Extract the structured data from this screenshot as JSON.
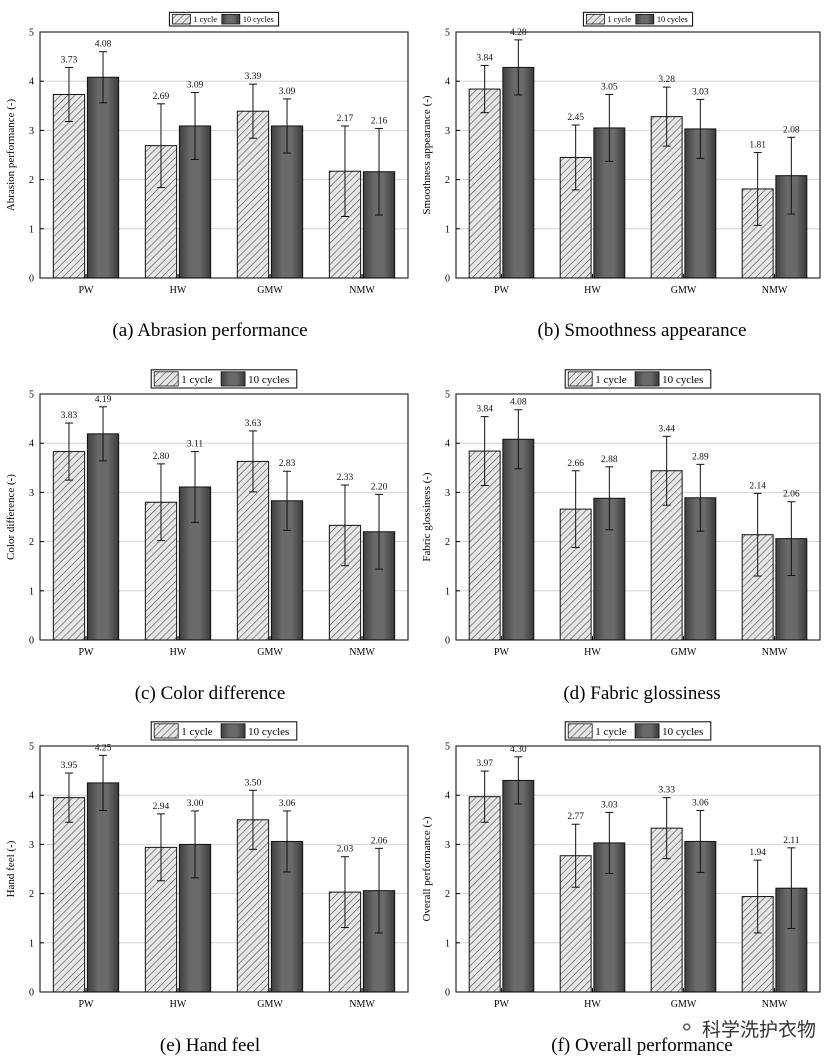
{
  "watermark": {
    "text": "科学洗护衣物",
    "icon": "wechat-bubble-icon"
  },
  "styles": {
    "bar_one_cycle": "#d9d9d9",
    "bar_ten_cycles": "#555555",
    "grid": "#cccccc",
    "axis": "#000000"
  },
  "chart_data": [
    {
      "id": "a",
      "type": "bar",
      "caption": "(a) Abrasion performance",
      "ylabel": "Abrasion performance (-)",
      "xlabel": "",
      "ylim": [
        0,
        5
      ],
      "yticks": [
        "0",
        "1",
        "2",
        "3",
        "4",
        "5"
      ],
      "grid": true,
      "legend": "top-center",
      "categories": [
        "PW",
        "HW",
        "GMW",
        "NMW"
      ],
      "series": [
        {
          "name": "1 cycle",
          "values": [
            3.73,
            2.69,
            3.39,
            2.17
          ],
          "labels": [
            "3.73",
            "2.69",
            "3.39",
            "2.17"
          ],
          "err": [
            0.55,
            0.85,
            0.55,
            0.92
          ]
        },
        {
          "name": "10 cycles",
          "values": [
            4.08,
            3.09,
            3.09,
            2.16
          ],
          "labels": [
            "4.08",
            "3.09",
            "3.09",
            "2.16"
          ],
          "err": [
            0.52,
            0.68,
            0.55,
            0.88
          ]
        }
      ]
    },
    {
      "id": "b",
      "type": "bar",
      "caption": "(b) Smoothness appearance",
      "ylabel": "Smoothness appearance (-)",
      "xlabel": "",
      "ylim": [
        0,
        5
      ],
      "yticks": [
        "0",
        "1",
        "2",
        "3",
        "4",
        "5"
      ],
      "grid": true,
      "legend": "top-center",
      "categories": [
        "PW",
        "HW",
        "GMW",
        "NMW"
      ],
      "series": [
        {
          "name": "1 cycle",
          "values": [
            3.84,
            2.45,
            3.28,
            1.81
          ],
          "labels": [
            "3.84",
            "2.45",
            "3.28",
            "1.81"
          ],
          "err": [
            0.48,
            0.66,
            0.6,
            0.74
          ]
        },
        {
          "name": "10 cycles",
          "values": [
            4.28,
            3.05,
            3.03,
            2.08
          ],
          "labels": [
            "4.28",
            "3.05",
            "3.03",
            "2.08"
          ],
          "err": [
            0.56,
            0.68,
            0.6,
            0.78
          ]
        }
      ]
    },
    {
      "id": "c",
      "type": "bar",
      "caption": "(c) Color difference",
      "ylabel": "Color difference (-)",
      "xlabel": "",
      "ylim": [
        0,
        5
      ],
      "yticks": [
        "0",
        "1",
        "2",
        "3",
        "4",
        "5"
      ],
      "grid": true,
      "legend": "top-center",
      "categories": [
        "PW",
        "HW",
        "GMW",
        "NMW"
      ],
      "series": [
        {
          "name": "1 cycle",
          "values": [
            3.83,
            2.8,
            3.63,
            2.33
          ],
          "labels": [
            "3.83",
            "2.80",
            "3.63",
            "2.33"
          ],
          "err": [
            0.58,
            0.78,
            0.62,
            0.82
          ]
        },
        {
          "name": "10 cycles",
          "values": [
            4.19,
            3.11,
            2.83,
            2.2
          ],
          "labels": [
            "4.19",
            "3.11",
            "2.83",
            "2.20"
          ],
          "err": [
            0.55,
            0.72,
            0.6,
            0.76
          ]
        }
      ]
    },
    {
      "id": "d",
      "type": "bar",
      "caption": "(d) Fabric glossiness",
      "ylabel": "Fabric glossiness (-)",
      "xlabel": "",
      "ylim": [
        0,
        5
      ],
      "yticks": [
        "0",
        "1",
        "2",
        "3",
        "4",
        "5"
      ],
      "grid": true,
      "legend": "top-center",
      "categories": [
        "PW",
        "HW",
        "GMW",
        "NMW"
      ],
      "series": [
        {
          "name": "1 cycle",
          "values": [
            3.84,
            2.66,
            3.44,
            2.14
          ],
          "labels": [
            "3.84",
            "2.66",
            "3.44",
            "2.14"
          ],
          "err": [
            0.7,
            0.78,
            0.7,
            0.84
          ]
        },
        {
          "name": "10 cycles",
          "values": [
            4.08,
            2.88,
            2.89,
            2.06
          ],
          "labels": [
            "4.08",
            "2.88",
            "2.89",
            "2.06"
          ],
          "err": [
            0.6,
            0.64,
            0.68,
            0.75
          ]
        }
      ]
    },
    {
      "id": "e",
      "type": "bar",
      "caption": "(e) Hand feel",
      "ylabel": "Hand feel (-)",
      "xlabel": "",
      "ylim": [
        0,
        5
      ],
      "yticks": [
        "0",
        "1",
        "2",
        "3",
        "4",
        "5"
      ],
      "grid": true,
      "legend": "top-center",
      "categories": [
        "PW",
        "HW",
        "GMW",
        "NMW"
      ],
      "series": [
        {
          "name": "1 cycle",
          "values": [
            3.95,
            2.94,
            3.5,
            2.03
          ],
          "labels": [
            "3.95",
            "2.94",
            "3.50",
            "2.03"
          ],
          "err": [
            0.5,
            0.68,
            0.6,
            0.72
          ]
        },
        {
          "name": "10 cycles",
          "values": [
            4.25,
            3.0,
            3.06,
            2.06
          ],
          "labels": [
            "4.25",
            "3.00",
            "3.06",
            "2.06"
          ],
          "err": [
            0.56,
            0.68,
            0.62,
            0.86
          ]
        }
      ]
    },
    {
      "id": "f",
      "type": "bar",
      "caption": "(f) Overall performance",
      "ylabel": "Overall performance (-)",
      "xlabel": "",
      "ylim": [
        0,
        5
      ],
      "yticks": [
        "0",
        "1",
        "2",
        "3",
        "4",
        "5"
      ],
      "grid": true,
      "legend": "top-center",
      "categories": [
        "PW",
        "HW",
        "GMW",
        "NMW"
      ],
      "series": [
        {
          "name": "1 cycle",
          "values": [
            3.97,
            2.77,
            3.33,
            1.94
          ],
          "labels": [
            "3.97",
            "2.77",
            "3.33",
            "1.94"
          ],
          "err": [
            0.52,
            0.64,
            0.62,
            0.74
          ]
        },
        {
          "name": "10 cycles",
          "values": [
            4.3,
            3.03,
            3.06,
            2.11
          ],
          "labels": [
            "4.30",
            "3.03",
            "3.06",
            "2.11"
          ],
          "err": [
            0.48,
            0.62,
            0.63,
            0.82
          ]
        }
      ]
    }
  ]
}
